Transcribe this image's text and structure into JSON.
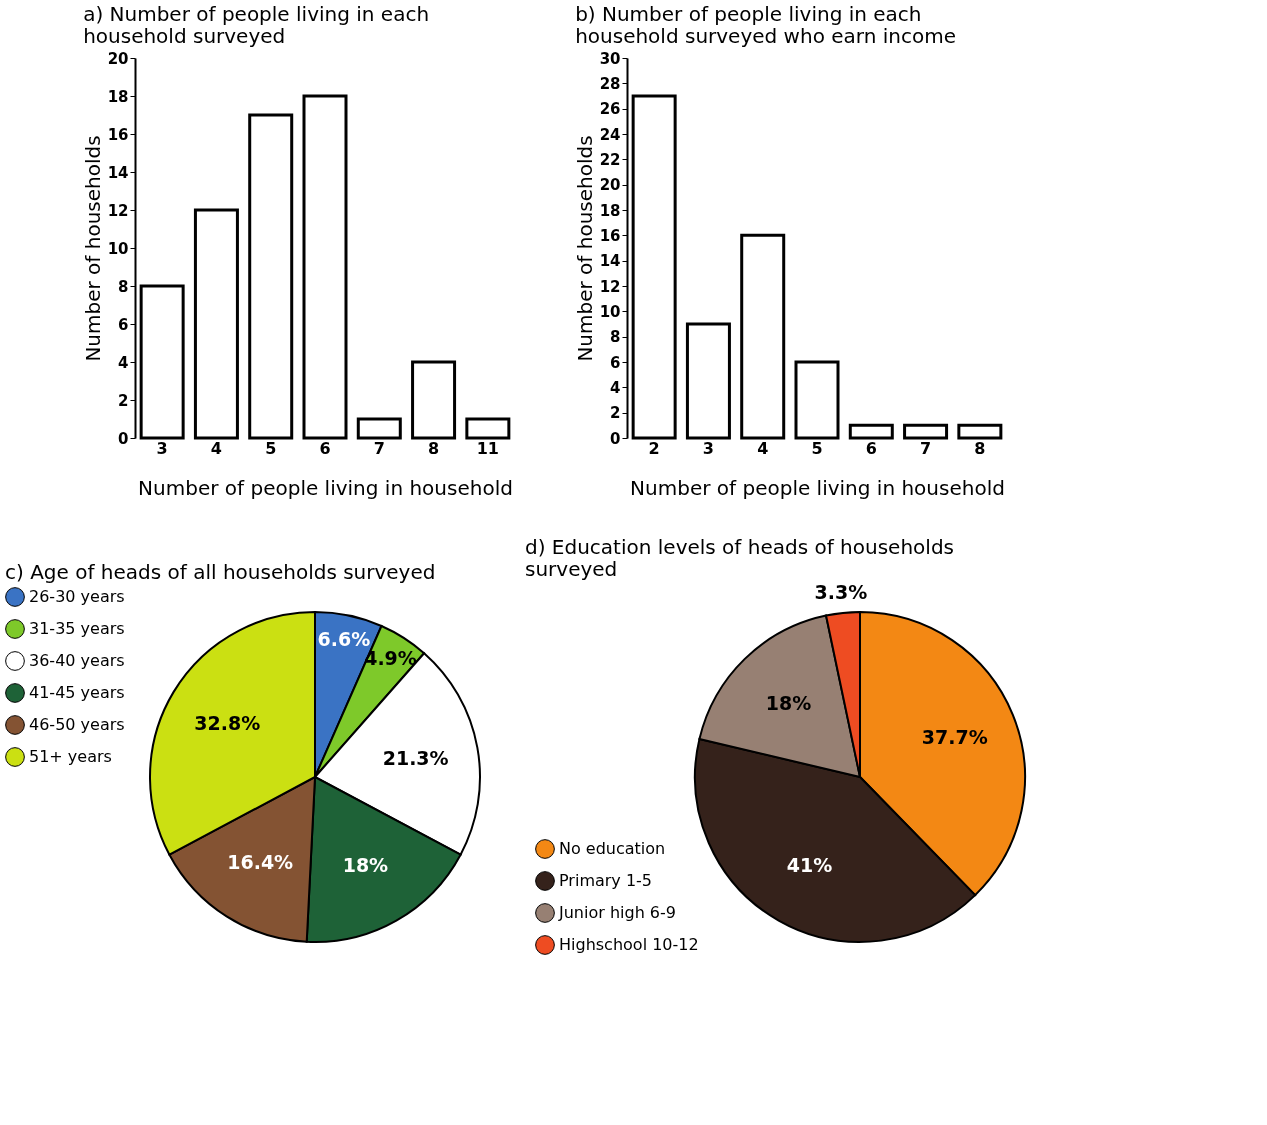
{
  "chart_data": [
    {
      "type": "bar",
      "title": "a) Number of people living in each household surveyed",
      "xlabel": "Number of people living in household",
      "ylabel": "Number of households",
      "categories": [
        "3",
        "4",
        "5",
        "6",
        "7",
        "8",
        "11"
      ],
      "values": [
        8,
        12,
        17,
        18,
        1,
        4,
        1
      ],
      "color": "#ffffff",
      "ylim": [
        0,
        20
      ],
      "yticks": [
        0,
        2,
        4,
        6,
        8,
        10,
        12,
        14,
        16,
        18,
        20
      ],
      "grid": false
    },
    {
      "type": "bar",
      "title": "b) Number of people living in each household surveyed who earn income",
      "xlabel": "Number of people living in household",
      "ylabel": "Number of households",
      "categories": [
        "2",
        "3",
        "4",
        "5",
        "6",
        "7",
        "8"
      ],
      "values": [
        27,
        9,
        16,
        6,
        1,
        1,
        1
      ],
      "color": "#ffffff",
      "ylim": [
        0,
        30
      ],
      "yticks": [
        0,
        2,
        4,
        6,
        8,
        10,
        12,
        14,
        16,
        18,
        20,
        22,
        24,
        26,
        28,
        30
      ],
      "grid": false
    },
    {
      "type": "pie",
      "title": "c) Age of heads of all households surveyed",
      "categories": [
        "26-30 years",
        "31-35 years",
        "36-40 years",
        "41-45 years",
        "46-50 years",
        "51+ years"
      ],
      "values": [
        6.6,
        4.9,
        21.3,
        18,
        16.4,
        32.8
      ],
      "colors": [
        "#3a73c4",
        "#7ec92a",
        "#ffffff",
        "#1e6237",
        "#845333",
        "#cbe012"
      ],
      "value_labels": [
        "6.6%",
        "4.9%",
        "21.3%",
        "18%",
        "16.4%",
        "32.8%"
      ],
      "legend": "left"
    },
    {
      "type": "pie",
      "title": "d) Education levels of heads of households surveyed",
      "categories": [
        "No education",
        "Primary 1-5",
        "Junior high 6-9",
        "Highschool 10-12"
      ],
      "values": [
        37.7,
        41,
        18,
        3.3
      ],
      "colors": [
        "#f38814",
        "#35221b",
        "#978073",
        "#ee4c22"
      ],
      "value_labels": [
        "37.7%",
        "41%",
        "18%",
        "3.3%"
      ],
      "legend": "bottom left"
    }
  ]
}
